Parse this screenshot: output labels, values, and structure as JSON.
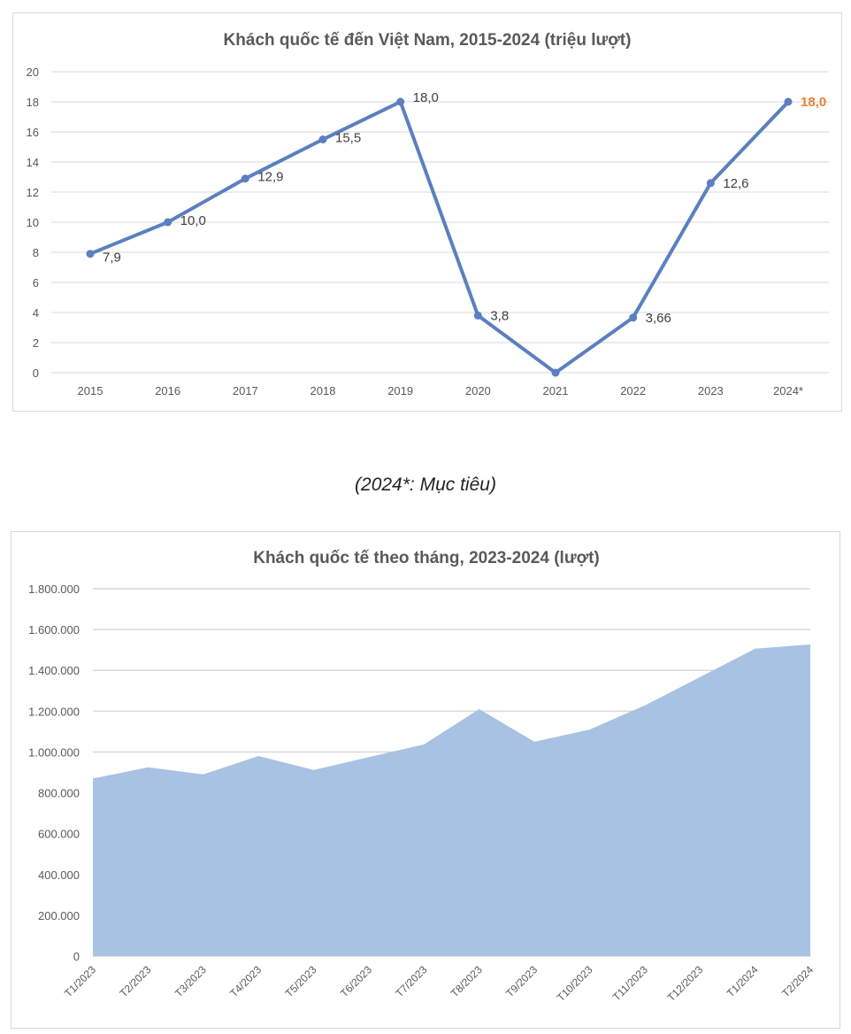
{
  "caption": "(2024*: Mục tiêu)",
  "chart_data": [
    {
      "type": "line",
      "title": "Khách quốc tế đến Việt Nam, 2015-2024 (triệu lượt)",
      "categories": [
        "2015",
        "2016",
        "2017",
        "2018",
        "2019",
        "2020",
        "2021",
        "2022",
        "2023",
        "2024*"
      ],
      "values": [
        7.9,
        10.0,
        12.9,
        15.5,
        18.0,
        3.8,
        0,
        3.66,
        12.6,
        18.0
      ],
      "labels": [
        "7,9",
        "10,0",
        "12,9",
        "15,5",
        "18,0",
        "3,8",
        "",
        "3,66",
        "12,6",
        "18,0"
      ],
      "highlight_index": 9,
      "ylim": [
        0,
        20
      ],
      "yticks": [
        "0",
        "2",
        "4",
        "6",
        "8",
        "10",
        "12",
        "14",
        "16",
        "18",
        "20"
      ],
      "grid": true,
      "colors": {
        "line": "#5b7fc0",
        "highlight": "#ed7d31"
      }
    },
    {
      "type": "area",
      "title": "Khách quốc tế theo tháng, 2023-2024 (lượt)",
      "categories": [
        "T1/2023",
        "T2/2023",
        "T3/2023",
        "T4/2023",
        "T5/2023",
        "T6/2023",
        "T7/2023",
        "T8/2023",
        "T9/2023",
        "T10/2023",
        "T11/2023",
        "T12/2023",
        "T1/2024",
        "T2/2024"
      ],
      "values": [
        870000,
        925000,
        890000,
        980000,
        912000,
        975000,
        1037000,
        1210000,
        1050000,
        1110000,
        1228000,
        1367000,
        1506000,
        1527000
      ],
      "ylim": [
        0,
        1800000
      ],
      "yticks": [
        "0",
        "200.000",
        "400.000",
        "600.000",
        "800.000",
        "1.000.000",
        "1.200.000",
        "1.400.000",
        "1.600.000",
        "1.800.000"
      ],
      "grid": true,
      "colors": {
        "fill": "#a7c2e2"
      }
    }
  ]
}
